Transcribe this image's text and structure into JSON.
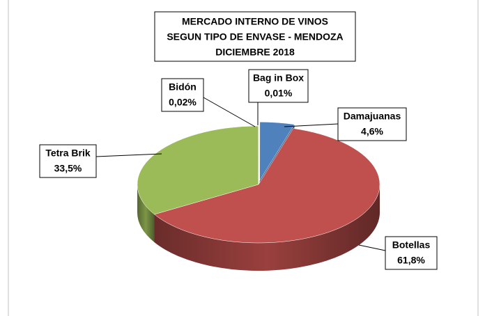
{
  "chart_data": {
    "type": "pie",
    "title": [
      "MERCADO INTERNO DE VINOS",
      "SEGUN TIPO DE ENVASE - MENDOZA",
      "DICIEMBRE 2018"
    ],
    "categories": [
      "Bag in Box",
      "Damajuanas",
      "Botellas",
      "Tetra Brik",
      "Bidón"
    ],
    "values": [
      0.01,
      4.6,
      61.8,
      33.5,
      0.02
    ],
    "value_labels": [
      "0,01%",
      "4,6%",
      "61,8%",
      "33,5%",
      "0,02%"
    ],
    "colors": [
      "#8064a2",
      "#4f81bd",
      "#c0504d",
      "#9bbb59",
      "#4bacc6"
    ]
  }
}
